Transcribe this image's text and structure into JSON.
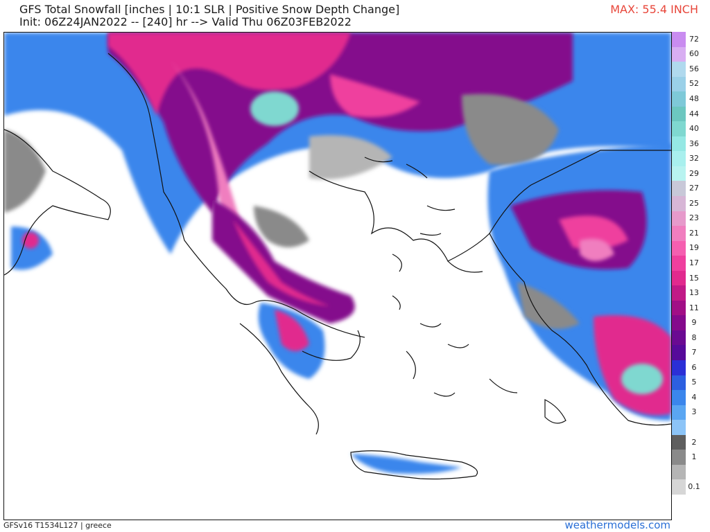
{
  "header": {
    "title": "GFS Total Snowfall [inches | 10:1 SLR | Positive Snow Depth Change]",
    "subtitle": "Init: 06Z24JAN2022 -- [240] hr --> Valid Thu 06Z03FEB2022",
    "max_label": "MAX: 55.4 INCH"
  },
  "colors": {
    "max_text": "#e8463a",
    "credit_text": "#2a6fd6",
    "coastline": "#111111"
  },
  "legend": {
    "levels": [
      {
        "label": "72",
        "color": "#c98cf0"
      },
      {
        "label": "60",
        "color": "#d8aef2"
      },
      {
        "label": "56",
        "color": "#b0d9ee"
      },
      {
        "label": "52",
        "color": "#9ad0e8"
      },
      {
        "label": "48",
        "color": "#7ec9d8"
      },
      {
        "label": "44",
        "color": "#6cc7c0"
      },
      {
        "label": "40",
        "color": "#7fd8d0"
      },
      {
        "label": "36",
        "color": "#95e8e4"
      },
      {
        "label": "32",
        "color": "#a9f0ee"
      },
      {
        "label": "29",
        "color": "#b8f3f0"
      },
      {
        "label": "27",
        "color": "#c8c8d8"
      },
      {
        "label": "25",
        "color": "#d7b6d6"
      },
      {
        "label": "23",
        "color": "#e69acb"
      },
      {
        "label": "21",
        "color": "#f07ebf"
      },
      {
        "label": "19",
        "color": "#f55fb0"
      },
      {
        "label": "17",
        "color": "#ef3f9e"
      },
      {
        "label": "15",
        "color": "#e12a8e"
      },
      {
        "label": "13",
        "color": "#c11a87"
      },
      {
        "label": "11",
        "color": "#a10f86"
      },
      {
        "label": "9",
        "color": "#840a8c"
      },
      {
        "label": "8",
        "color": "#6a0a92"
      },
      {
        "label": "7",
        "color": "#560a9a"
      },
      {
        "label": "6",
        "color": "#2b2fd6"
      },
      {
        "label": "5",
        "color": "#2c5fe0"
      },
      {
        "label": "4",
        "color": "#3b86ec"
      },
      {
        "label": "3",
        "color": "#5aa6f2"
      },
      {
        "label": "",
        "color": "#8cc4f7"
      },
      {
        "label": "2",
        "color": "#5e5e5e"
      },
      {
        "label": "1",
        "color": "#8a8a8a"
      },
      {
        "label": "",
        "color": "#b5b5b5"
      },
      {
        "label": "0.1",
        "color": "#d6d6d6"
      }
    ]
  },
  "footer": {
    "model": "GFSv16 T1534L127 | greece",
    "credit": "weathermodels.com"
  }
}
